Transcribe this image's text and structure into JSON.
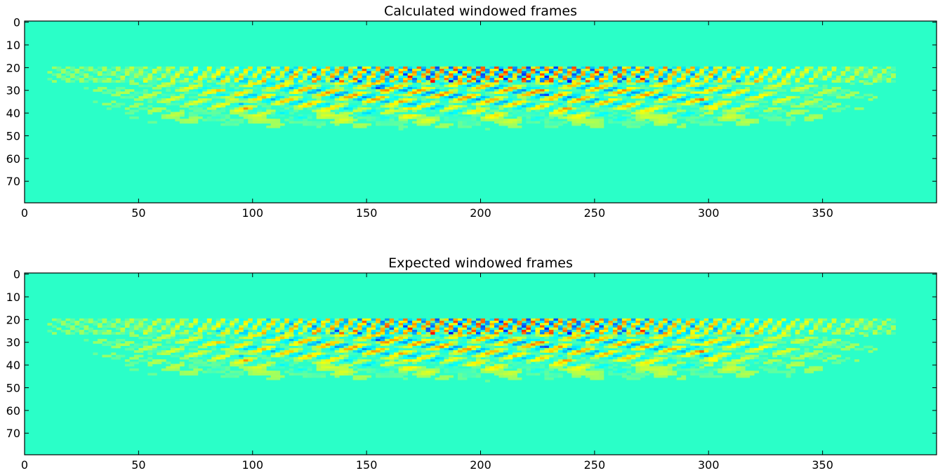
{
  "chart_data": [
    {
      "type": "heatmap",
      "title": "Calculated windowed frames",
      "xlabel": "",
      "ylabel": "",
      "xlim": [
        0,
        399
      ],
      "ylim": [
        79,
        0
      ],
      "colormap": "jet",
      "background_color": "#2affc8",
      "x_ticks": [
        "0",
        "50",
        "100",
        "150",
        "200",
        "250",
        "300",
        "350"
      ],
      "y_ticks": [
        "0",
        "10",
        "20",
        "30",
        "40",
        "50",
        "60",
        "70"
      ],
      "active_rows": [
        20,
        50
      ],
      "active_columns": [
        10,
        380
      ],
      "grid": false
    },
    {
      "type": "heatmap",
      "title": "Expected windowed frames",
      "xlabel": "",
      "ylabel": "",
      "xlim": [
        0,
        399
      ],
      "ylim": [
        79,
        0
      ],
      "colormap": "jet",
      "background_color": "#2affc8",
      "x_ticks": [
        "0",
        "50",
        "100",
        "150",
        "200",
        "250",
        "300",
        "350"
      ],
      "y_ticks": [
        "0",
        "10",
        "20",
        "30",
        "40",
        "50",
        "60",
        "70"
      ],
      "active_rows": [
        20,
        50
      ],
      "active_columns": [
        10,
        380
      ],
      "grid": false
    }
  ]
}
